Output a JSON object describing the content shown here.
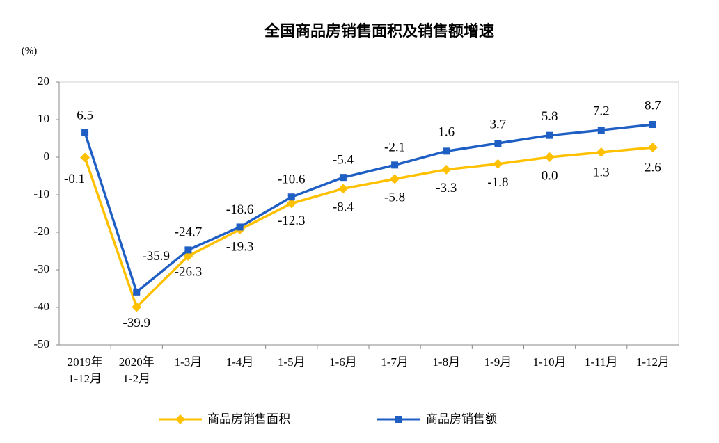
{
  "chart_data": {
    "type": "line",
    "title": "全国商品房销售面积及销售额增速",
    "y_unit": "(%)",
    "categories": [
      "2019年\n1-12月",
      "2020年\n1-2月",
      "1-3月",
      "1-4月",
      "1-5月",
      "1-6月",
      "1-7月",
      "1-8月",
      "1-9月",
      "1-10月",
      "1-11月",
      "1-12月"
    ],
    "series": [
      {
        "name": "商品房销售面积",
        "color": "#FFC000",
        "marker": "diamond",
        "values": [
          -0.1,
          -39.9,
          -26.3,
          -19.3,
          -12.3,
          -8.4,
          -5.8,
          -3.3,
          -1.8,
          0.0,
          1.3,
          2.6
        ],
        "value_labels": [
          "-0.1",
          "-39.9",
          "-26.3",
          "-19.3",
          "-12.3",
          "-8.4",
          "-5.8",
          "-3.3",
          "-1.8",
          "0.0",
          "1.3",
          "2.6"
        ]
      },
      {
        "name": "商品房销售额",
        "color": "#1F5FC4",
        "marker": "square",
        "values": [
          6.5,
          -35.9,
          -24.7,
          -18.6,
          -10.6,
          -5.4,
          -2.1,
          1.6,
          3.7,
          5.8,
          7.2,
          8.7
        ]
      }
    ],
    "ylim": [
      -50,
      20
    ],
    "yticks": [
      -50,
      -40,
      -30,
      -20,
      -10,
      0,
      10,
      20
    ],
    "grid": false
  }
}
